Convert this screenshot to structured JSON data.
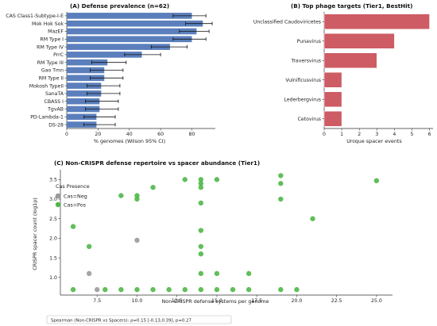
{
  "chart_data": [
    {
      "type": "bar",
      "orientation": "horizontal",
      "title": "(A) Defense prevalence (n=62)",
      "xlabel": "% genomes (Wilson 95% CI)",
      "ylabel": "",
      "xlim": [
        0,
        95
      ],
      "xticks": [
        0,
        20,
        40,
        60,
        80
      ],
      "color": "#5b7fbc",
      "categories": [
        "CAS Class1-Subtype-I-E",
        "Mok Hok Sok",
        "MazEF",
        "RM Type I",
        "RM Type IV",
        "PrrC",
        "RM Type III",
        "Gao Tmn",
        "RM Type II",
        "Mokosh TypeII",
        "SanaTA",
        "CBASS I",
        "TgvAB",
        "PD-Lambda-1",
        "DS-28"
      ],
      "values": [
        80,
        87,
        83,
        80,
        66,
        48,
        26,
        24,
        24,
        22,
        22,
        21,
        21,
        19,
        19
      ],
      "ci_low": [
        68,
        76,
        72,
        68,
        54,
        37,
        16,
        15,
        15,
        13,
        13,
        12,
        12,
        11,
        11
      ],
      "ci_high": [
        89,
        93,
        91,
        89,
        77,
        60,
        38,
        36,
        36,
        34,
        34,
        33,
        33,
        31,
        31
      ]
    },
    {
      "type": "bar",
      "orientation": "horizontal",
      "title": "(B) Top phage targets (Tier1, BestHit)",
      "xlabel": "Unique spacer events",
      "ylabel": "",
      "xlim": [
        0,
        6.2
      ],
      "xticks": [
        0,
        1,
        2,
        3,
        4,
        5,
        6
      ],
      "color": "#cd5c64",
      "categories": [
        "Unclassified Caudoviricetes",
        "Punavirus",
        "Traversvirus",
        "Vulnificusvirus",
        "Lederbergvirus",
        "Cetovirus"
      ],
      "values": [
        6,
        4,
        3,
        1,
        1,
        1
      ]
    },
    {
      "type": "scatter",
      "title": "(C) Non-CRISPR defense repertoire vs spacer abundance (Tier1)",
      "xlabel": "Non-CRISPR defense systems per genome",
      "ylabel": "CRISPR spacer count (log1p)",
      "xlim": [
        5.2,
        26
      ],
      "ylim": [
        0.55,
        3.75
      ],
      "xticks": [
        7.5,
        10.0,
        12.5,
        15.0,
        17.5,
        20.0,
        22.5,
        25.0
      ],
      "yticks": [
        1.0,
        1.5,
        2.0,
        2.5,
        3.0,
        3.5
      ],
      "legend": {
        "title": "Cas Presence",
        "position": "top-left",
        "entries": [
          {
            "label": "Cas=Neg",
            "color": "#9a9a9a"
          },
          {
            "label": "Cas=Pos",
            "color": "#4fb848"
          }
        ]
      },
      "annotation": "Spearman (Non-CRISPR vs Spacers): ρ=0.15 [-0.13,0.39], p=0.27",
      "series": [
        {
          "name": "Cas=Neg",
          "color": "#9a9a9a",
          "points": [
            [
              7,
              1.1
            ],
            [
              7.5,
              0.69
            ],
            [
              10,
              1.95
            ]
          ]
        },
        {
          "name": "Cas=Pos",
          "color": "#4fb848",
          "points": [
            [
              6,
              2.3
            ],
            [
              6,
              0.69
            ],
            [
              7,
              1.79
            ],
            [
              8,
              0.69
            ],
            [
              9,
              3.09
            ],
            [
              9,
              0.69
            ],
            [
              10,
              3.09
            ],
            [
              10,
              3.0
            ],
            [
              10,
              0.69
            ],
            [
              11,
              3.3
            ],
            [
              11,
              0.69
            ],
            [
              12,
              0.69
            ],
            [
              13,
              3.5
            ],
            [
              13,
              0.69
            ],
            [
              14,
              3.5
            ],
            [
              14,
              3.4
            ],
            [
              14,
              3.3
            ],
            [
              14,
              2.9
            ],
            [
              14,
              2.2
            ],
            [
              14,
              1.79
            ],
            [
              14,
              1.6
            ],
            [
              14,
              1.1
            ],
            [
              14,
              0.69
            ],
            [
              15,
              3.5
            ],
            [
              15,
              1.1
            ],
            [
              15,
              0.69
            ],
            [
              16,
              0.69
            ],
            [
              17,
              1.1
            ],
            [
              17,
              0.69
            ],
            [
              19,
              3.6
            ],
            [
              19,
              3.4
            ],
            [
              19,
              3.0
            ],
            [
              19,
              0.69
            ],
            [
              20,
              0.69
            ],
            [
              21,
              2.5
            ],
            [
              25,
              3.47
            ]
          ]
        }
      ]
    }
  ]
}
